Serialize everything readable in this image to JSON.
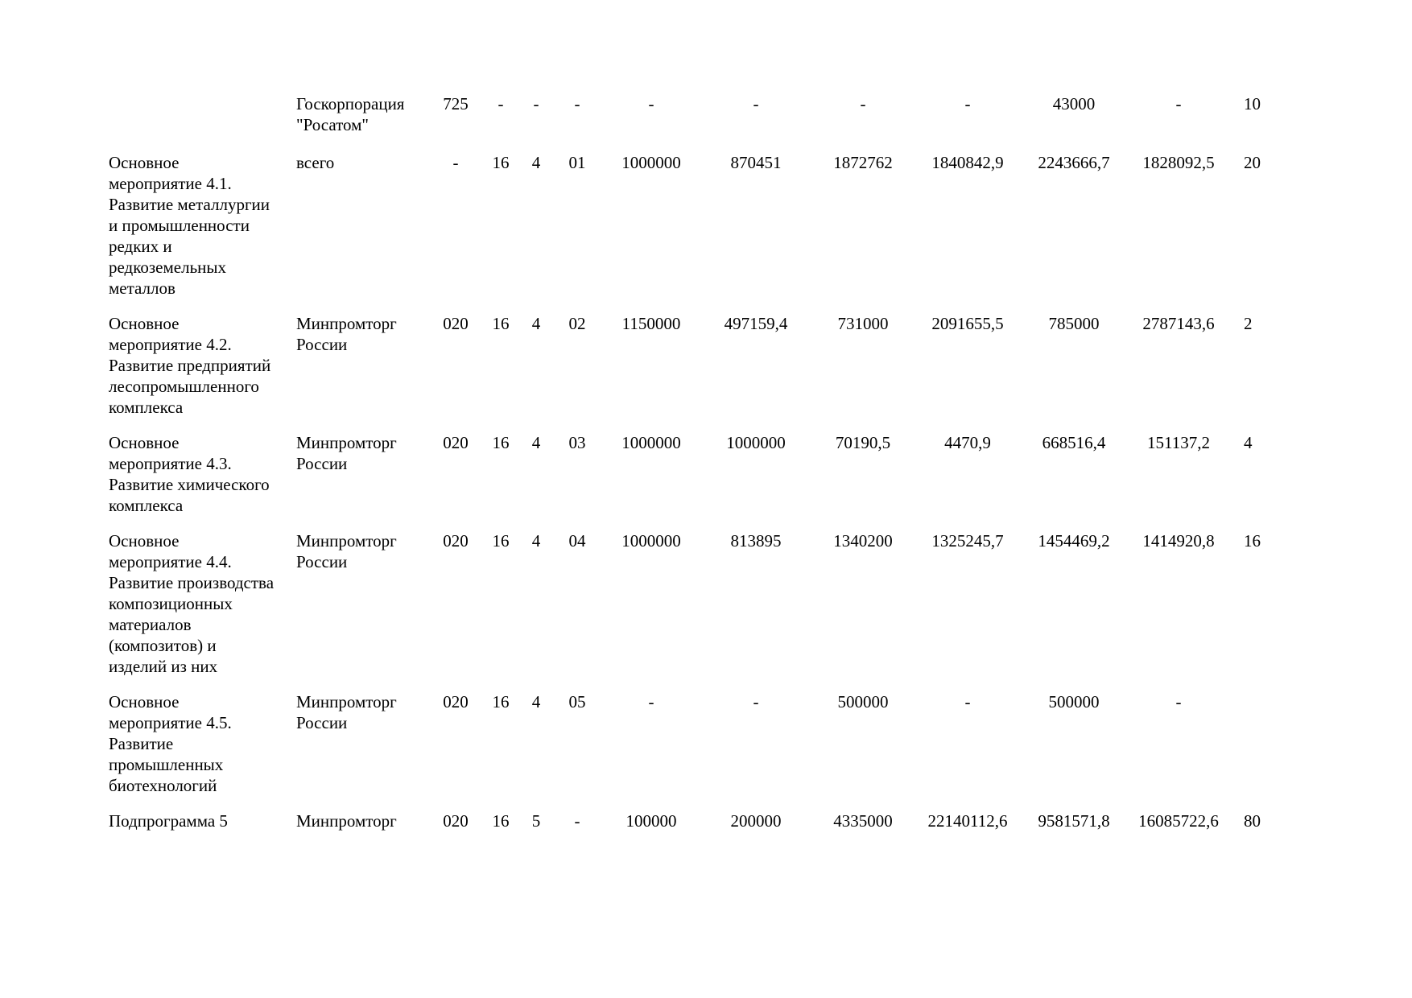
{
  "document": {
    "language": "ru",
    "description_rows": [
      {
        "title": "",
        "executor": "Госкорпорация\n\"Росатом\"",
        "grbs_code": "725",
        "gp_code": "-",
        "subprogram_code": "-",
        "measure_code": "-",
        "amounts": [
          "-",
          "-",
          "-",
          "-",
          "43000",
          "-",
          "10"
        ]
      },
      {
        "title": "Основное\nмероприятие 4.1.\nРазвитие металлургии\nи промышленности\nредких и\nредкоземельных\nметаллов",
        "executor": "всего",
        "grbs_code": "-",
        "gp_code": "16",
        "subprogram_code": "4",
        "measure_code": "01",
        "amounts": [
          "1000000",
          "870451",
          "1872762",
          "1840842,9",
          "2243666,7",
          "1828092,5",
          "20"
        ]
      },
      {
        "title": "Основное\nмероприятие 4.2.\nРазвитие предприятий\nлесопромышленного\nкомплекса",
        "executor": "Минпромторг\nРоссии",
        "grbs_code": "020",
        "gp_code": "16",
        "subprogram_code": "4",
        "measure_code": "02",
        "amounts": [
          "1150000",
          "497159,4",
          "731000",
          "2091655,5",
          "785000",
          "2787143,6",
          "2"
        ]
      },
      {
        "title": "Основное\nмероприятие 4.3.\nРазвитие химического\nкомплекса",
        "executor": "Минпромторг\nРоссии",
        "grbs_code": "020",
        "gp_code": "16",
        "subprogram_code": "4",
        "measure_code": "03",
        "amounts": [
          "1000000",
          "1000000",
          "70190,5",
          "4470,9",
          "668516,4",
          "151137,2",
          "4"
        ]
      },
      {
        "title": "Основное\nмероприятие 4.4.\nРазвитие производства\nкомпозиционных\nматериалов\n(композитов) и\nизделий из них",
        "executor": "Минпромторг\nРоссии",
        "grbs_code": "020",
        "gp_code": "16",
        "subprogram_code": "4",
        "measure_code": "04",
        "amounts": [
          "1000000",
          "813895",
          "1340200",
          "1325245,7",
          "1454469,2",
          "1414920,8",
          "16"
        ]
      },
      {
        "title": "Основное\nмероприятие 4.5.\nРазвитие\nпромышленных\nбиотехнологий",
        "executor": "Минпромторг\nРоссии",
        "grbs_code": "020",
        "gp_code": "16",
        "subprogram_code": "4",
        "measure_code": "05",
        "amounts": [
          "-",
          "-",
          "500000",
          "-",
          "500000",
          "-",
          ""
        ]
      },
      {
        "title": "Подпрограмма 5",
        "executor": "Минпромторг",
        "grbs_code": "020",
        "gp_code": "16",
        "subprogram_code": "5",
        "measure_code": "-",
        "amounts": [
          "100000",
          "200000",
          "4335000",
          "22140112,6",
          "9581571,8",
          "16085722,6",
          "80"
        ]
      }
    ]
  }
}
